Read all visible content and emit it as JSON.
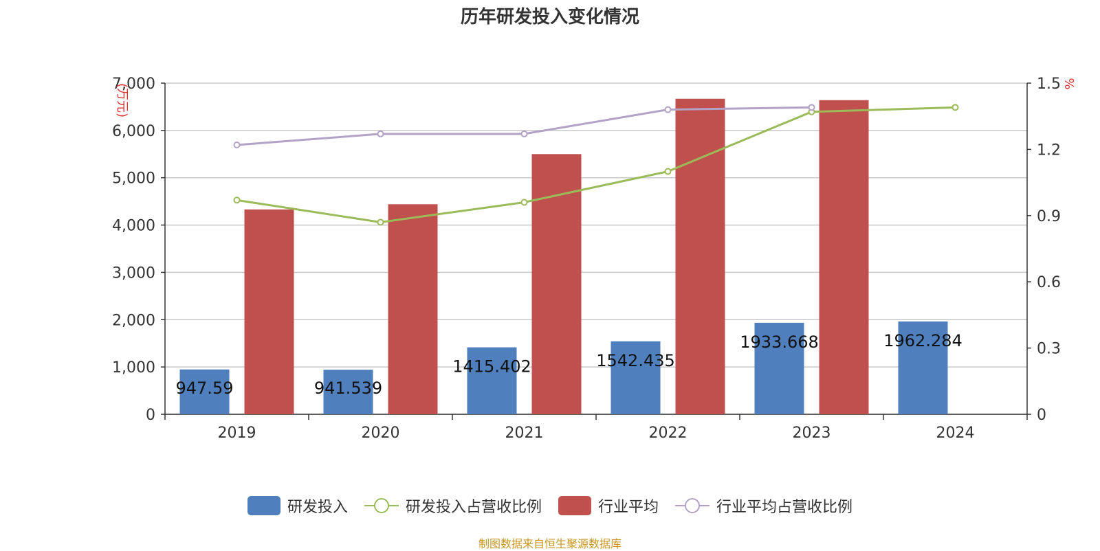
{
  "chart_data": {
    "type": "bar",
    "title": "历年研发投入变化情况",
    "categories": [
      "2019",
      "2020",
      "2021",
      "2022",
      "2023",
      "2024"
    ],
    "y_left": {
      "label": "(万元)",
      "ylim": [
        0,
        7000
      ],
      "ticks": [
        0,
        1000,
        2000,
        3000,
        4000,
        5000,
        6000,
        7000
      ],
      "tick_labels": [
        "0",
        "1,000",
        "2,000",
        "3,000",
        "4,000",
        "5,000",
        "6,000",
        "7,000"
      ]
    },
    "y_right": {
      "label": "%",
      "ylim": [
        0,
        1.5
      ],
      "ticks": [
        0,
        0.3,
        0.6,
        0.9,
        1.2,
        1.5
      ],
      "tick_labels": [
        "0",
        "0.3",
        "0.6",
        "0.9",
        "1.2",
        "1.5"
      ]
    },
    "grid": true,
    "legend_position": "bottom",
    "series": [
      {
        "name": "研发投入",
        "type": "bar",
        "axis": "left",
        "color": "#4f7fbd",
        "values": [
          947.59,
          941.539,
          1415.402,
          1542.435,
          1933.668,
          1962.284
        ],
        "data_labels": [
          "947.59",
          "941.539",
          "1415.402",
          "1542.435",
          "1933.668",
          "1962.284"
        ]
      },
      {
        "name": "研发投入占营收比例",
        "type": "line",
        "axis": "right",
        "color": "#9bbb59",
        "values": [
          0.97,
          0.87,
          0.96,
          1.1,
          1.37,
          1.39
        ]
      },
      {
        "name": "行业平均",
        "type": "bar",
        "axis": "left",
        "color": "#c0504d",
        "values": [
          4330,
          4440,
          5500,
          6670,
          6640,
          null
        ]
      },
      {
        "name": "行业平均占营收比例",
        "type": "line",
        "axis": "right",
        "color": "#b3a2c7",
        "values": [
          1.22,
          1.27,
          1.27,
          1.38,
          1.39,
          null
        ]
      }
    ]
  },
  "source_note": "制图数据来自恒生聚源数据库"
}
